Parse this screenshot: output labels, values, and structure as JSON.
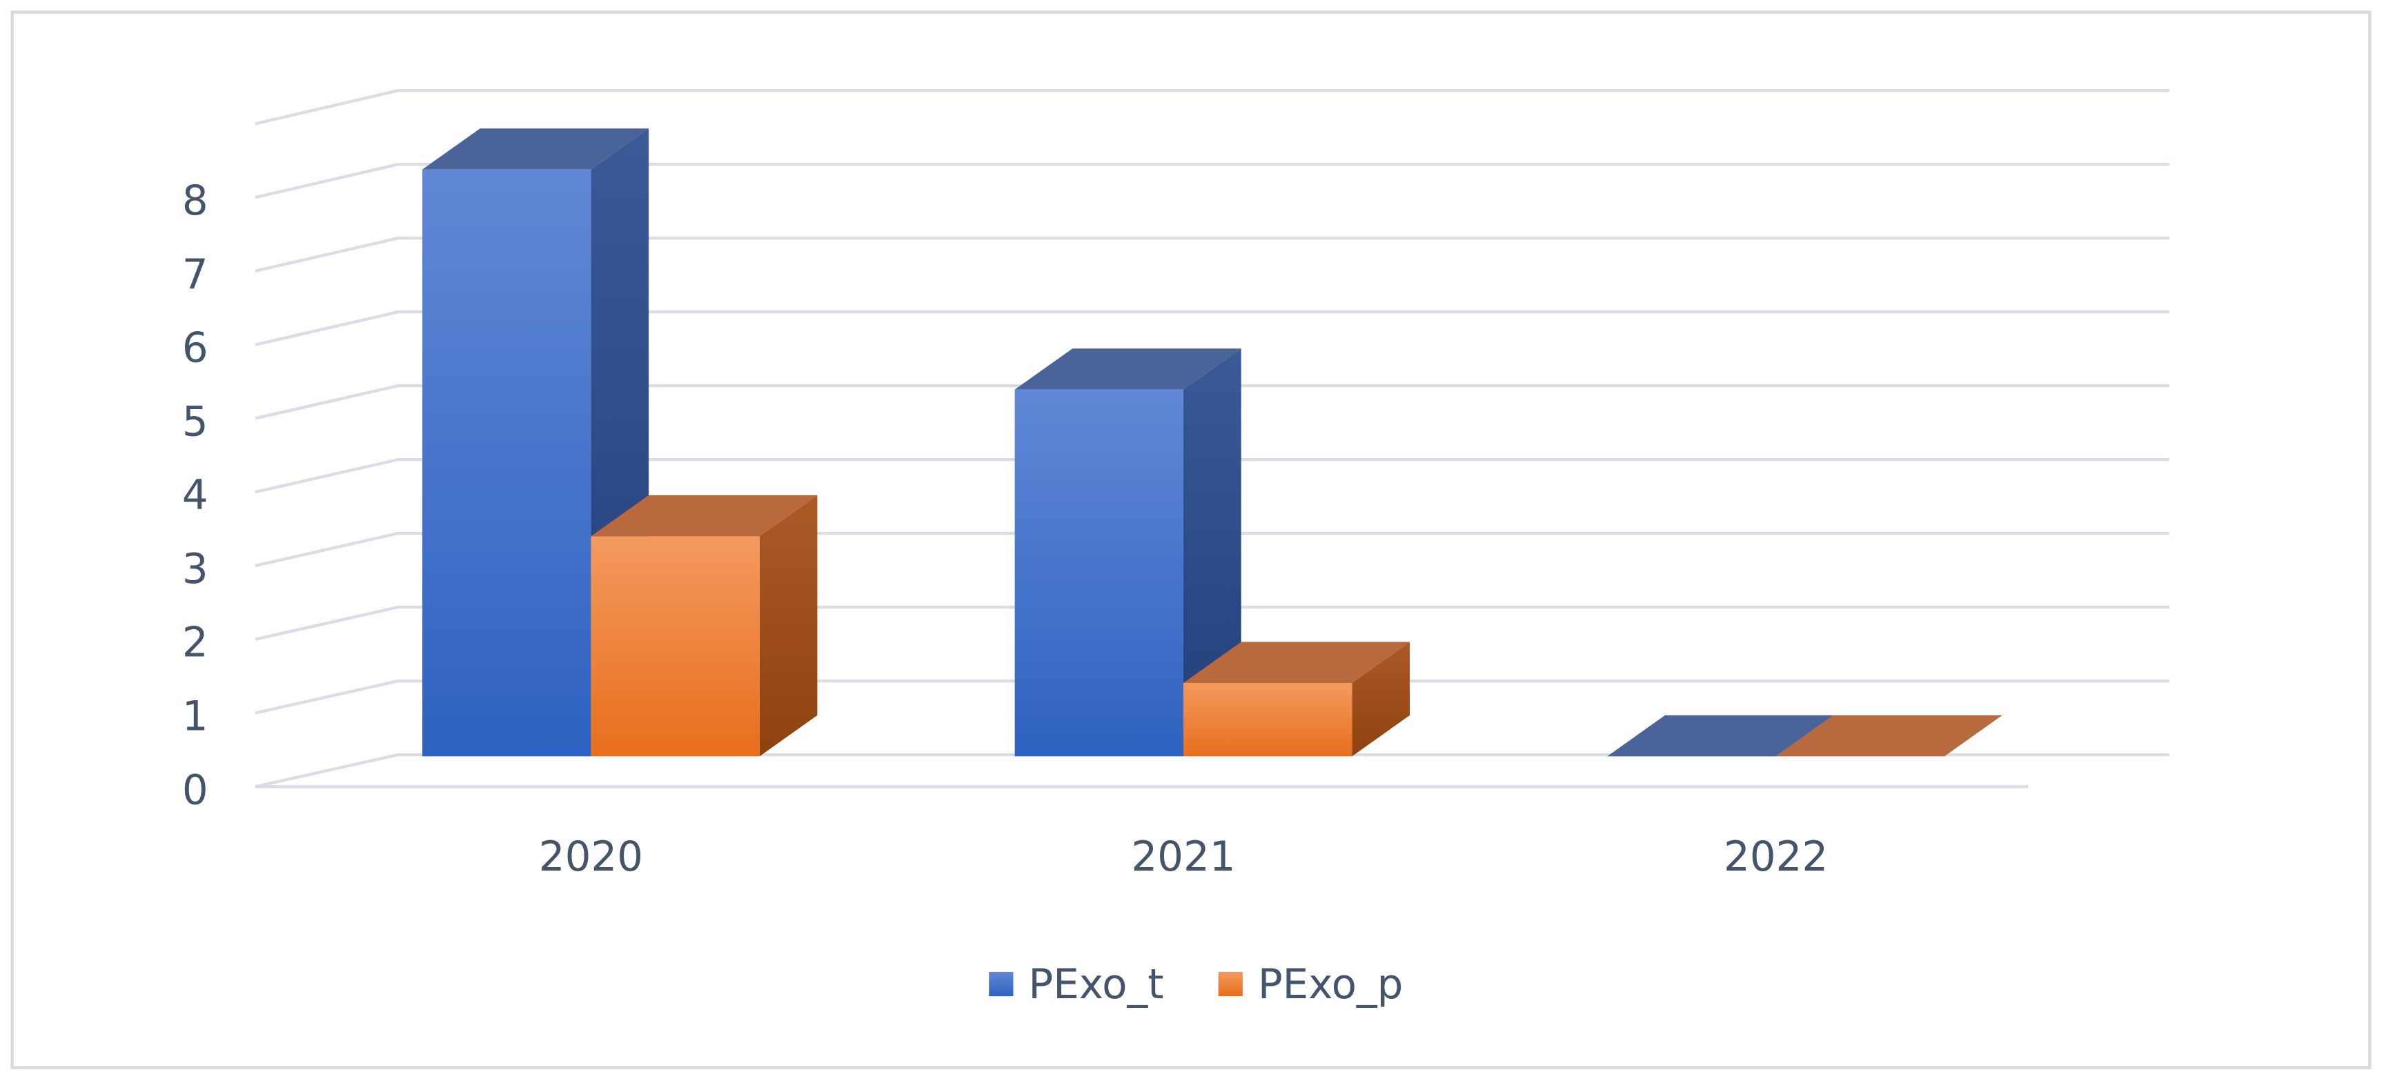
{
  "chart_data": {
    "type": "bar3d",
    "categories": [
      "2020",
      "2021",
      "2022"
    ],
    "series": [
      {
        "name": "PExo_t",
        "color": "#4472c4",
        "values": [
          8,
          5,
          0
        ]
      },
      {
        "name": "PExo_p",
        "color": "#ed7d31",
        "values": [
          3,
          1,
          0
        ]
      }
    ],
    "ylim": [
      0,
      9
    ],
    "yticks": [
      0,
      1,
      2,
      3,
      4,
      5,
      6,
      7,
      8
    ],
    "grid": true,
    "legend": "bottom"
  }
}
